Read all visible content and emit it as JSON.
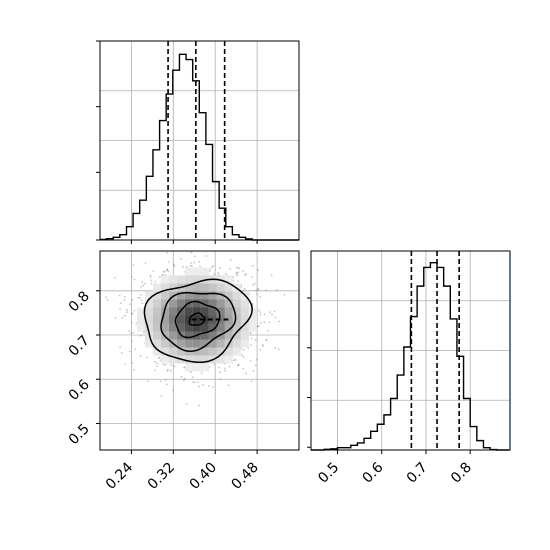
{
  "chart_data": [
    {
      "type": "histogram",
      "panel": "top-left",
      "variable": "param_1",
      "xlim": [
        0.18,
        0.56
      ],
      "bin_edges": [
        0.18,
        0.1926,
        0.2053,
        0.2179,
        0.2306,
        0.2432,
        0.2558,
        0.2685,
        0.2811,
        0.2938,
        0.3064,
        0.319,
        0.3317,
        0.3443,
        0.357,
        0.3696,
        0.3822,
        0.3949,
        0.4075,
        0.4202,
        0.4328,
        0.4454,
        0.4581,
        0.4707,
        0.4834,
        0.496,
        0.5086,
        0.5213,
        0.5339,
        0.5466,
        0.5592
      ],
      "values": [
        0.2,
        0.5,
        1,
        2,
        5,
        10,
        15,
        24,
        34,
        45,
        55,
        64,
        70,
        68,
        60,
        48,
        36,
        22,
        12,
        5,
        2,
        1,
        0.4,
        0,
        0,
        0,
        0,
        0,
        0,
        0
      ],
      "quantiles": [
        0.31,
        0.363,
        0.418
      ],
      "ylim": [
        0,
        75
      ],
      "yticks_shown": false,
      "grid": true
    },
    {
      "type": "density_2d",
      "panel": "bottom-left",
      "x_variable": "param_1",
      "y_variable": "param_2",
      "xlim": [
        0.18,
        0.56
      ],
      "ylim": [
        0.44,
        0.89
      ],
      "xticks": [
        0.24,
        0.32,
        0.4,
        0.48
      ],
      "xtick_labels": [
        "0.24",
        "0.32",
        "0.40",
        "0.48"
      ],
      "yticks": [
        0.5,
        0.6,
        0.7,
        0.8
      ],
      "ytick_labels": [
        "0.5",
        "0.6",
        "0.7",
        "0.8"
      ],
      "peak": {
        "x": 0.365,
        "y": 0.735
      },
      "spread": {
        "x": 0.05,
        "y": 0.05
      },
      "contour_levels": 4,
      "grid": true
    },
    {
      "type": "histogram",
      "panel": "bottom-right",
      "variable": "param_2",
      "xlim": [
        0.44,
        0.89
      ],
      "bin_edges": [
        0.44,
        0.455,
        0.47,
        0.485,
        0.5,
        0.515,
        0.53,
        0.545,
        0.56,
        0.575,
        0.59,
        0.605,
        0.62,
        0.635,
        0.65,
        0.665,
        0.68,
        0.695,
        0.71,
        0.725,
        0.74,
        0.755,
        0.77,
        0.785,
        0.8,
        0.815,
        0.83,
        0.845,
        0.86,
        0.875,
        0.89
      ],
      "values": [
        0,
        0,
        0.3,
        0.5,
        1,
        1,
        2,
        3,
        5,
        8,
        11,
        15,
        22,
        32,
        44,
        57,
        70,
        78,
        80,
        78,
        70,
        56,
        40,
        22,
        10,
        4,
        1,
        0.2,
        0,
        0
      ],
      "quantiles": [
        0.667,
        0.725,
        0.775
      ],
      "ylim": [
        0,
        85
      ],
      "xticks": [
        0.5,
        0.6,
        0.7,
        0.8
      ],
      "xtick_labels": [
        "0.5",
        "0.6",
        "0.7",
        "0.8"
      ],
      "yticks_shown": false,
      "grid": true
    }
  ],
  "colors": {
    "line": "#000000",
    "grid": "#b0b0b0",
    "points": "#808080",
    "frame": "#000000",
    "right_spine": "#445566"
  }
}
